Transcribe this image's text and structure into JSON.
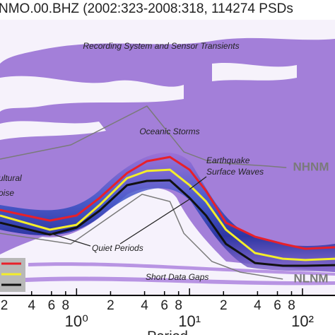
{
  "chart_data": {
    "type": "line",
    "title": "NMO.00.BHZ (2002:323-2008:318, 114274 PSDs",
    "x_label": "Period",
    "xlog": true,
    "xlim": [
      0.21,
      194
    ],
    "ylim": [
      -200,
      -70
    ],
    "xticks": [
      {
        "value": 0.2,
        "label": "2"
      },
      {
        "value": 0.4,
        "label": "4"
      },
      {
        "value": 0.6,
        "label": "6"
      },
      {
        "value": 0.8,
        "label": "8"
      },
      {
        "value": 1,
        "label": "10⁰"
      },
      2,
      4,
      6,
      8,
      {
        "value": 10,
        "label": "10¹"
      },
      {
        "value": 20,
        "label": "2"
      },
      {
        "value": 40,
        "label": "4"
      },
      {
        "value": 60,
        "label": "6"
      },
      {
        "value": 80,
        "label": "8"
      },
      {
        "value": 100,
        "label": "10²"
      }
    ],
    "x": [
      0.21,
      0.58,
      1,
      1.6,
      2.8,
      4.2,
      6.7,
      10,
      14,
      21,
      38,
      67,
      106,
      194
    ],
    "series": [
      {
        "color": "#e8202a",
        "values": [
          -159.7,
          -164.7,
          -162.3,
          -154,
          -142.3,
          -136.7,
          -134.7,
          -140.7,
          -150.7,
          -165.7,
          -172.3,
          -175.7,
          -178,
          -177.3
        ]
      },
      {
        "color": "#f4ee2a",
        "values": [
          -162.3,
          -169,
          -166.7,
          -157.3,
          -144.7,
          -141.3,
          -140.7,
          -148,
          -155.7,
          -169,
          -180,
          -182.7,
          -183.3,
          -182.7
        ]
      },
      {
        "color": "#111111",
        "values": [
          -165.7,
          -171.3,
          -168,
          -160,
          -148,
          -146,
          -145.7,
          -154,
          -162.3,
          -175.7,
          -184.7,
          -186,
          -186,
          -185.7
        ]
      }
    ],
    "models": [
      {
        "name": "NHNM",
        "color": "#7a7a7a",
        "x": [
          0.21,
          0.89,
          4.2,
          8.9,
          15.8,
          50,
          72
        ],
        "values": [
          -135.7,
          -129,
          -110.7,
          -132.3,
          -137.3,
          -139,
          -139.7
        ]
      },
      {
        "name": "NLNM",
        "color": "#7a7a7a",
        "x": [
          0.21,
          0.89,
          3.8,
          6.7,
          8.9,
          15.8,
          28,
          67
        ],
        "values": [
          -170.7,
          -175.7,
          -152.3,
          -155.7,
          -170.7,
          -184,
          -189,
          -192.3
        ]
      }
    ],
    "annotations": [
      "Recording System and Sensor Transients",
      "Oceanic Storms",
      "Earthquake",
      "Surface Waves",
      "ultural",
      "oise",
      "Quiet Periods",
      "Short Data Gaps"
    ]
  }
}
